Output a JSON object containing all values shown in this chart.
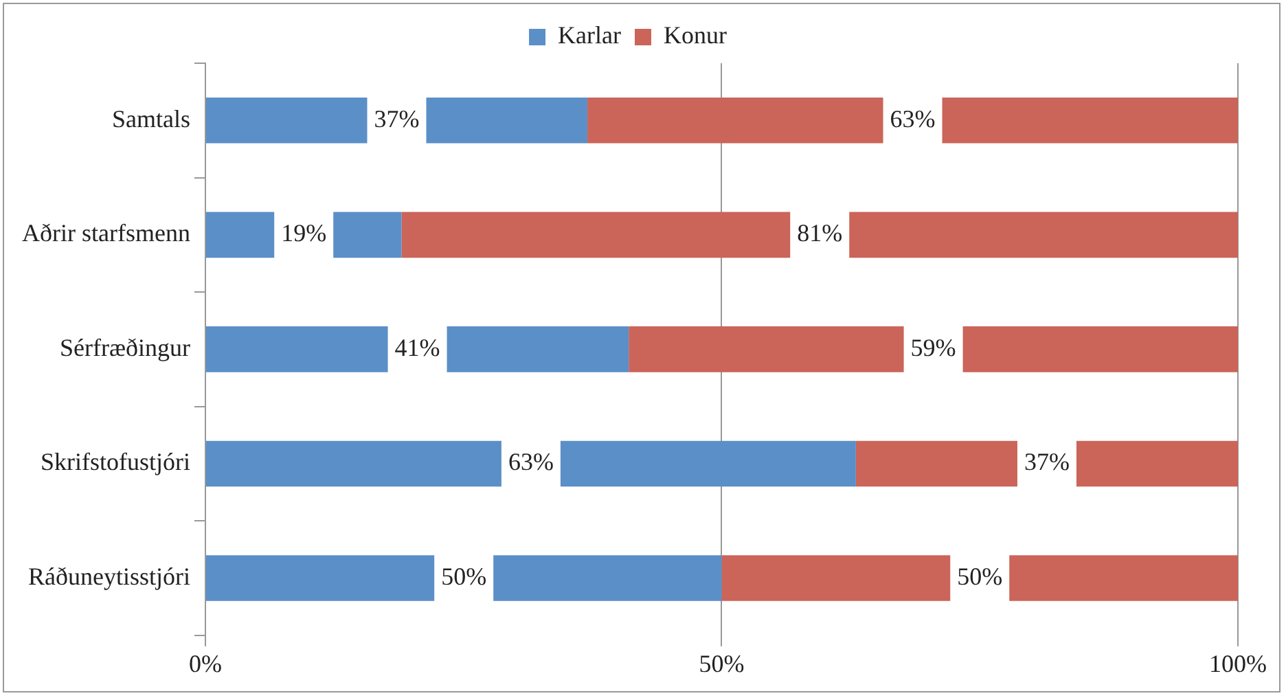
{
  "chart_data": {
    "type": "bar",
    "orientation": "horizontal",
    "stacked": true,
    "categories": [
      "Samtals",
      "Aðrir starfsmenn",
      "Sérfræðingur",
      "Skrifstofustjóri",
      "Ráðuneytisstjóri"
    ],
    "series": [
      {
        "name": "Karlar",
        "color": "#5b8fc7",
        "values": [
          37,
          19,
          41,
          63,
          50
        ],
        "value_labels": [
          "37%",
          "19%",
          "41%",
          "63%",
          "50%"
        ]
      },
      {
        "name": "Konur",
        "color": "#cb6459",
        "values": [
          63,
          81,
          59,
          37,
          50
        ],
        "value_labels": [
          "63%",
          "81%",
          "59%",
          "37%",
          "50%"
        ]
      }
    ],
    "xlim": [
      0,
      100
    ],
    "xticks": [
      {
        "value": 0,
        "label": "0%"
      },
      {
        "value": 50,
        "label": "50%"
      },
      {
        "value": 100,
        "label": "100%"
      }
    ],
    "grid": "x",
    "legend": "top"
  }
}
